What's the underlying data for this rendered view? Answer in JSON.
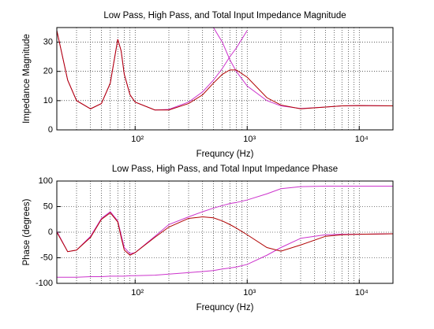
{
  "chart_data": [
    {
      "type": "line",
      "title": "Low Pass, High Pass, and Total Input Impedance Magnitude",
      "x_label": "Frequncy (Hz)",
      "y_label": "Impedance Magnitude",
      "log_x": true,
      "grid": true,
      "minor_grid": true,
      "xlim": [
        20,
        20000
      ],
      "xticks": [
        {
          "value": 100,
          "label": "10²"
        },
        {
          "value": 1000,
          "label": "10³"
        },
        {
          "value": 10000,
          "label": "10⁴"
        }
      ],
      "ylim": [
        0,
        35
      ],
      "yticks": [
        0,
        10,
        20,
        30
      ],
      "x": [
        20,
        25,
        30,
        40,
        50,
        60,
        70,
        75,
        80,
        90,
        100,
        150,
        200,
        300,
        400,
        500,
        600,
        700,
        800,
        1000,
        1500,
        2000,
        3000,
        5000,
        7000,
        10000,
        20000
      ],
      "series": [
        {
          "color": "#cc33cc",
          "values": [
            34,
            17,
            10,
            7.2,
            9,
            16,
            31,
            27,
            19,
            12,
            9.5,
            6.8,
            7,
            9.5,
            13,
            17,
            21,
            25,
            28,
            34,
            null,
            null,
            null,
            null,
            null,
            null,
            null
          ]
        },
        {
          "color": "#cc33cc",
          "values": [
            null,
            null,
            null,
            null,
            null,
            null,
            null,
            null,
            null,
            null,
            null,
            null,
            null,
            null,
            null,
            35,
            30,
            24,
            20,
            15,
            10,
            8.2,
            7.3,
            7.8,
            8.2,
            8.3,
            8.2
          ]
        },
        {
          "color": "#b00000",
          "values": [
            34,
            17,
            10,
            7.2,
            9,
            16,
            31,
            27,
            19,
            12,
            9.5,
            6.8,
            6.8,
            9,
            12,
            16,
            19,
            20.5,
            20.5,
            18,
            11,
            8.5,
            7.2,
            7.8,
            8.2,
            8.3,
            8.2
          ]
        }
      ]
    },
    {
      "type": "line",
      "title": "Low Pass, High Pass, and Total Input Impedance Phase",
      "x_label": "Frequncy (Hz)",
      "y_label": "Phase (degrees)",
      "log_x": true,
      "grid": true,
      "minor_grid": true,
      "xlim": [
        20,
        20000
      ],
      "xticks": [
        {
          "value": 100,
          "label": "10²"
        },
        {
          "value": 1000,
          "label": "10³"
        },
        {
          "value": 10000,
          "label": "10⁴"
        }
      ],
      "ylim": [
        -100,
        100
      ],
      "yticks": [
        -100,
        -50,
        0,
        50,
        100
      ],
      "x": [
        20,
        25,
        30,
        40,
        50,
        60,
        70,
        75,
        80,
        90,
        100,
        150,
        200,
        300,
        400,
        500,
        600,
        700,
        800,
        1000,
        1500,
        2000,
        3000,
        5000,
        7000,
        10000,
        20000
      ],
      "series": [
        {
          "color": "#cc33cc",
          "values": [
            2,
            -38,
            -35,
            -8,
            27,
            40,
            22,
            -5,
            -30,
            -42,
            -40,
            -8,
            15,
            30,
            40,
            47,
            52,
            56,
            58,
            63,
            75,
            85,
            89,
            90,
            90,
            90,
            90
          ]
        },
        {
          "color": "#cc33cc",
          "values": [
            -88,
            -88,
            -88,
            -87,
            -87,
            -86,
            -86,
            -86,
            -86,
            -85,
            -85,
            -84,
            -82,
            -79,
            -77,
            -75,
            -72,
            -70,
            -68,
            -63,
            -45,
            -30,
            -12,
            -5,
            -4,
            -4,
            -3
          ]
        },
        {
          "color": "#b00000",
          "values": [
            0,
            -38,
            -35,
            -10,
            25,
            38,
            20,
            -10,
            -35,
            -45,
            -40,
            -10,
            10,
            27,
            30,
            28,
            22,
            15,
            8,
            -5,
            -30,
            -37,
            -25,
            -8,
            -5,
            -4,
            -3
          ]
        }
      ]
    }
  ]
}
